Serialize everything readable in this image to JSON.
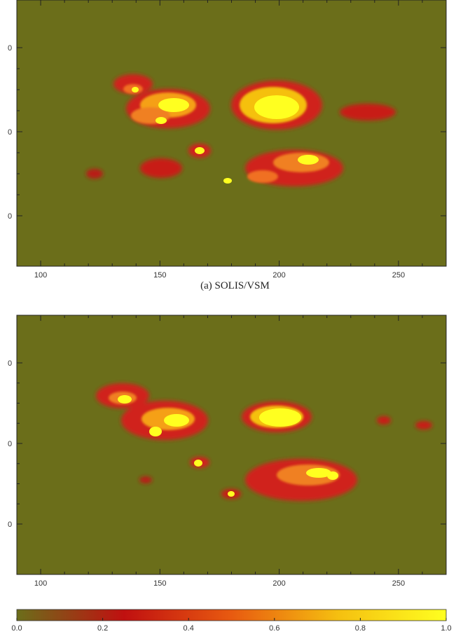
{
  "panels": [
    {
      "caption": "(a)  SOLIS/VSM",
      "x_ticks": [
        "100",
        "150",
        "200",
        "250"
      ],
      "y_ticks": [
        "0",
        "0",
        "0"
      ]
    },
    {
      "caption": "",
      "x_ticks": [
        "100",
        "150",
        "200",
        "250"
      ],
      "y_ticks": [
        "0",
        "0",
        "0"
      ]
    }
  ],
  "colorbar": {
    "ticks": [
      "0.0",
      "0.2",
      "0.4",
      "0.6",
      "0.8",
      "1.0"
    ],
    "colors": [
      "#6b6e1a",
      "#c01010",
      "#e85a10",
      "#f5c010",
      "#ffff20"
    ]
  },
  "chart_data": [
    {
      "type": "heatmap",
      "x_range": [
        90,
        270
      ],
      "x_ticks": [
        100,
        150,
        200,
        250
      ],
      "colormap_range": [
        0.0,
        1.0
      ],
      "background_value": 0.0
    },
    {
      "type": "heatmap",
      "x_range": [
        90,
        270
      ],
      "x_ticks": [
        100,
        150,
        200,
        250
      ],
      "colormap_range": [
        0.0,
        1.0
      ],
      "background_value": 0.0
    }
  ]
}
